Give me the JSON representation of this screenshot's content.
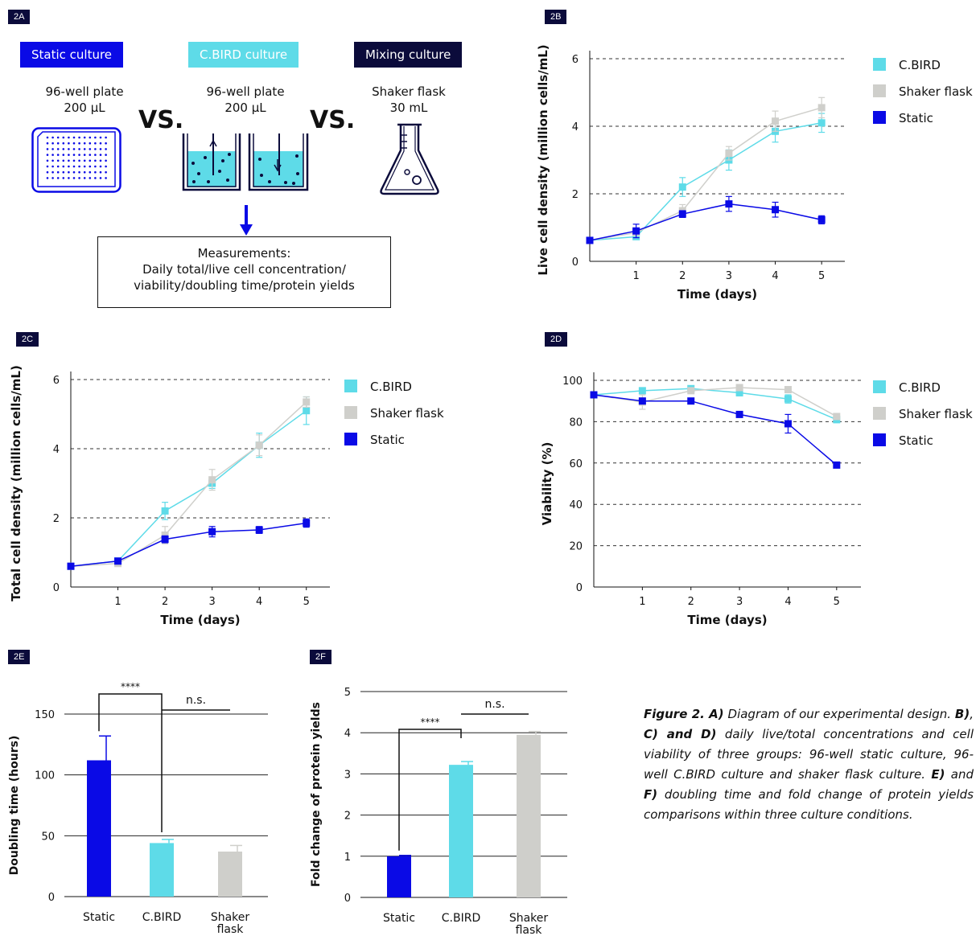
{
  "colors": {
    "cbird": "#5edbe8",
    "shaker": "#cfcfcb",
    "static": "#0a0ae6",
    "navy": "#0b0b3b",
    "grid": "#333333"
  },
  "panel_2a": {
    "tag": "2A",
    "static_label": "Static culture",
    "cbird_label": "C.BIRD culture",
    "mixing_label": "Mixing culture",
    "static_vessel": "96-well plate",
    "static_volume": "200 μL",
    "cbird_vessel": "96-well plate",
    "cbird_volume": "200 μL",
    "mixing_vessel": "Shaker flask",
    "mixing_volume": "30 mL",
    "vs_1": "VS.",
    "vs_2": "VS.",
    "measure_line1": "Measurements:",
    "measure_line2": "Daily total/live cell concentration/",
    "measure_line3": "viability/doubling time/protein yields",
    "icons": [
      "well-plate-icon",
      "cbird-wells-icon",
      "flask-icon",
      "down-arrow-icon"
    ]
  },
  "legend": {
    "cbird": "C.BIRD",
    "shaker": "Shaker flask",
    "static": "Static"
  },
  "caption": {
    "b1": "Figure 2. A)",
    "t1": " Diagram of our experimental design. ",
    "b2": "B)",
    "t2": ", ",
    "b3": "C) and D)",
    "t3": " daily live/total concentrations and cell viability of three groups: 96-well static culture, 96-well C.BIRD culture and shaker flask culture. ",
    "b4": "E)",
    "t4": " and ",
    "b5": "F)",
    "t5": " doubling time and fold change of protein yields comparisons within three culture conditions."
  },
  "chart_data": [
    {
      "id": "2B",
      "tag": "2B",
      "type": "line",
      "xlabel": "Time (days)",
      "ylabel": "Live cell density (million cells/mL)",
      "xlim": [
        0,
        5.5
      ],
      "ylim": [
        0,
        6
      ],
      "yticks": [
        0,
        2,
        4,
        6
      ],
      "xticks": [
        1,
        2,
        3,
        4,
        5
      ],
      "x": [
        0,
        1,
        2,
        3,
        4,
        5
      ],
      "grid": "dashed-horizontal",
      "legend_position": "right",
      "series": [
        {
          "name": "C.BIRD",
          "color_key": "cbird",
          "values": [
            0.62,
            0.73,
            2.2,
            3.0,
            3.85,
            4.1
          ],
          "errors": [
            0,
            0.05,
            0.28,
            0.3,
            0.32,
            0.28
          ]
        },
        {
          "name": "Shaker flask",
          "color_key": "shaker",
          "values": [
            0.62,
            0.85,
            1.5,
            3.2,
            4.15,
            4.55
          ],
          "errors": [
            0,
            0.05,
            0.18,
            0.2,
            0.3,
            0.3
          ]
        },
        {
          "name": "Static",
          "color_key": "static",
          "values": [
            0.62,
            0.9,
            1.4,
            1.7,
            1.53,
            1.23
          ],
          "errors": [
            0,
            0.2,
            0.1,
            0.22,
            0.22,
            0.12
          ]
        }
      ]
    },
    {
      "id": "2C",
      "tag": "2C",
      "type": "line",
      "xlabel": "Time (days)",
      "ylabel": "Total cell density (million cells/mL)",
      "xlim": [
        0,
        5.5
      ],
      "ylim": [
        0,
        6
      ],
      "yticks": [
        0,
        2,
        4,
        6
      ],
      "xticks": [
        1,
        2,
        3,
        4,
        5
      ],
      "x": [
        0,
        1,
        2,
        3,
        4,
        5
      ],
      "grid": "dashed-horizontal",
      "legend_position": "right",
      "series": [
        {
          "name": "C.BIRD",
          "color_key": "cbird",
          "values": [
            0.6,
            0.75,
            2.2,
            3.0,
            4.1,
            5.1
          ],
          "errors": [
            0,
            0.05,
            0.25,
            0.15,
            0.35,
            0.4
          ]
        },
        {
          "name": "Shaker flask",
          "color_key": "shaker",
          "values": [
            0.6,
            0.68,
            1.5,
            3.1,
            4.1,
            5.35
          ],
          "errors": [
            0,
            0.05,
            0.25,
            0.3,
            0.3,
            0.15
          ]
        },
        {
          "name": "Static",
          "color_key": "static",
          "values": [
            0.6,
            0.75,
            1.38,
            1.6,
            1.65,
            1.85
          ],
          "errors": [
            0,
            0.05,
            0.1,
            0.15,
            0.1,
            0.12
          ]
        }
      ]
    },
    {
      "id": "2D",
      "tag": "2D",
      "type": "line",
      "xlabel": "Time (days)",
      "ylabel": "Viability (%)",
      "xlim": [
        0,
        5.5
      ],
      "ylim": [
        0,
        100
      ],
      "yticks": [
        0,
        20,
        40,
        60,
        80,
        100
      ],
      "xticks": [
        1,
        2,
        3,
        4,
        5
      ],
      "x": [
        0,
        1,
        2,
        3,
        4,
        5
      ],
      "grid": "dashed-horizontal",
      "legend_position": "right",
      "series": [
        {
          "name": "C.BIRD",
          "color_key": "cbird",
          "values": [
            93,
            95,
            96,
            94,
            91,
            81
          ],
          "errors": [
            0,
            1,
            1,
            1.5,
            2,
            1.5
          ]
        },
        {
          "name": "Shaker flask",
          "color_key": "shaker",
          "values": [
            93,
            89.5,
            95,
            96.5,
            95.5,
            82.5
          ],
          "errors": [
            0,
            3.5,
            1,
            1,
            1.5,
            1.5
          ]
        },
        {
          "name": "Static",
          "color_key": "static",
          "values": [
            93,
            90,
            90,
            83.5,
            79,
            59
          ],
          "errors": [
            0,
            0.5,
            1,
            1,
            4.5,
            1
          ]
        }
      ]
    },
    {
      "id": "2E",
      "tag": "2E",
      "type": "bar",
      "xlabel": "",
      "ylabel": "Doubling time (hours)",
      "ylim": [
        0,
        150
      ],
      "yticks": [
        0,
        50,
        100,
        150
      ],
      "categories": [
        "Static",
        "C.BIRD",
        "Shaker flask"
      ],
      "category_lines": [
        [
          "Static"
        ],
        [
          "C.BIRD"
        ],
        [
          "Shaker",
          "flask"
        ]
      ],
      "color_keys": [
        "static",
        "cbird",
        "shaker"
      ],
      "values": [
        112,
        44,
        37
      ],
      "errors": [
        20,
        3,
        5
      ],
      "grid": "solid-horizontal",
      "annotations": [
        {
          "from": 0,
          "to": 1,
          "label": "****"
        },
        {
          "from": 1,
          "to": 2,
          "label": "n.s."
        }
      ]
    },
    {
      "id": "2F",
      "tag": "2F",
      "type": "bar",
      "xlabel": "",
      "ylabel": "Fold change of protein yields",
      "ylim": [
        0,
        5
      ],
      "yticks": [
        0,
        1,
        2,
        3,
        4,
        5
      ],
      "categories": [
        "Static",
        "C.BIRD",
        "Shaker flask"
      ],
      "category_lines": [
        [
          "Static"
        ],
        [
          "C.BIRD"
        ],
        [
          "Shaker",
          "flask"
        ]
      ],
      "color_keys": [
        "static",
        "cbird",
        "shaker"
      ],
      "values": [
        1.0,
        3.22,
        3.95
      ],
      "errors": [
        0.02,
        0.08,
        0.08
      ],
      "grid": "solid-horizontal",
      "annotations": [
        {
          "from": 0,
          "to": 1,
          "label": "****"
        },
        {
          "from": 1,
          "to": 2,
          "label": "n.s."
        }
      ]
    }
  ]
}
